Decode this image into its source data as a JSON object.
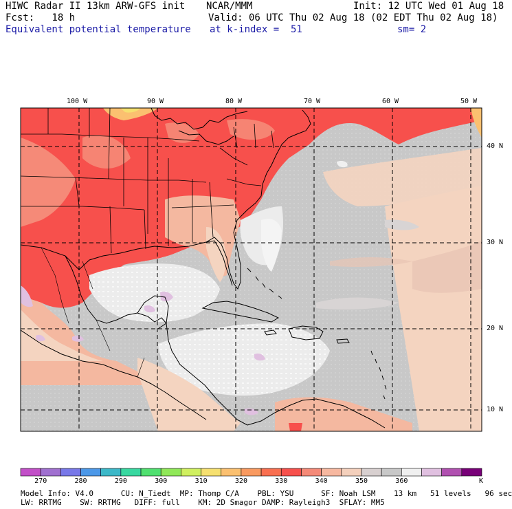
{
  "header": {
    "model_title": "HIWC Radar II 13km ARW-GFS init",
    "org": "NCAR/MMM",
    "init": "Init: 12 UTC Wed 01 Aug 18",
    "fcst": "Fcst:   18 h",
    "valid": "Valid: 06 UTC Thu 02 Aug 18 (02 EDT Thu 02 Aug 18)",
    "field": "Equivalent potential temperature",
    "level": "at k-index =  51",
    "smoothing": "sm= 2"
  },
  "axes": {
    "lon_labels": [
      "100 W",
      "90 W",
      "80 W",
      "70 W",
      "60 W",
      "50 W"
    ],
    "lat_labels": [
      "40 N",
      "30 N",
      "20 N",
      "10 N"
    ]
  },
  "colorbar": {
    "labels": [
      "270",
      "280",
      "290",
      "300",
      "310",
      "320",
      "330",
      "340",
      "350",
      "360"
    ],
    "unit": "K",
    "colors": [
      "#c24fc8",
      "#a070d0",
      "#7878e8",
      "#4c98e8",
      "#3cb8c8",
      "#38d8a0",
      "#50e070",
      "#90e858",
      "#d0f060",
      "#f6e070",
      "#fbc070",
      "#f99a60",
      "#f96f50",
      "#f7504c",
      "#f58a78",
      "#f7b8a0",
      "#f4d0bc",
      "#d8d0d0",
      "#c8c8c8",
      "#f0f0f0",
      "#e0c0e0",
      "#b050b0",
      "#780078"
    ]
  },
  "footer": {
    "line1": "Model Info: V4.0      CU: N_Tiedt  MP: Thomp C/A    PBL: YSU      SF: Noah LSM    13 km   51 levels   96 sec",
    "line2": "LW: RRTMG    SW: RRTMG   DIFF: full    KM: 2D Smagor DAMP: Rayleigh3  SFLAY: MM5"
  },
  "map_colors": {
    "warm_land": "#f7504c",
    "warm_alt": "#f58a78",
    "salmon": "#f4b8a0",
    "peach": "#f4d4c0",
    "gray": "#c8c8c8",
    "light_gray": "#d8d4d4",
    "near_white": "#f0f0f0",
    "lavender": "#e0c0e0"
  }
}
